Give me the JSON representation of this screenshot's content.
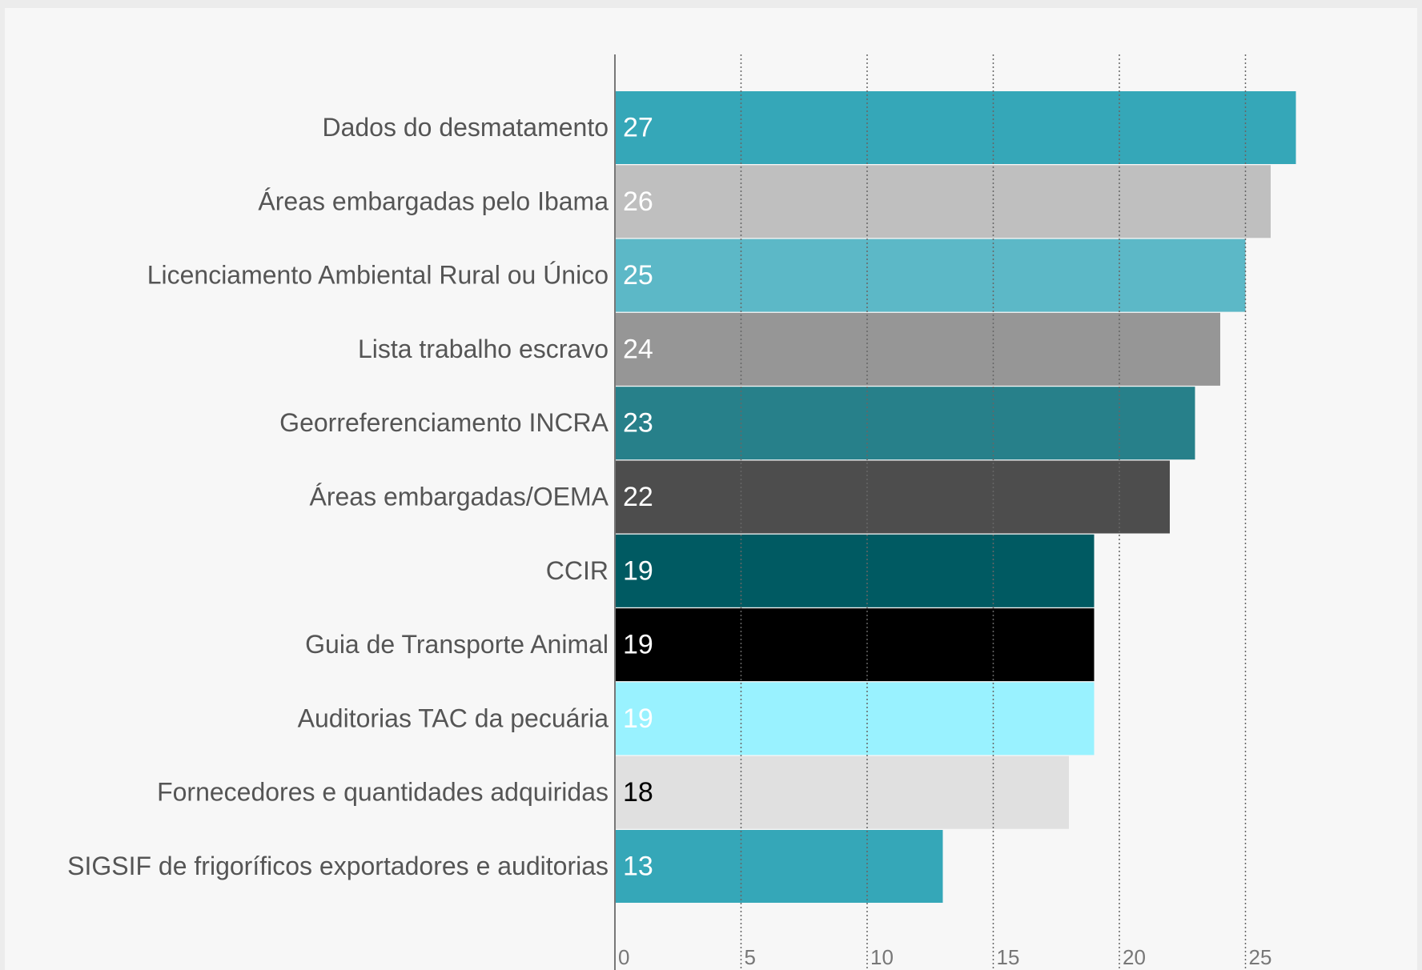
{
  "chart_data": {
    "type": "bar",
    "orientation": "horizontal",
    "categories": [
      "Dados do desmatamento",
      "Áreas embargadas pelo Ibama",
      "Licenciamento Ambiental Rural ou Único",
      "Lista trabalho escravo",
      "Georreferenciamento INCRA",
      "Áreas embargadas/OEMA",
      "CCIR",
      "Guia de Transporte Animal",
      "Auditorias TAC da pecuária",
      "Fornecedores e quantidades adquiridas",
      "SIGSIF de frigoríficos exportadores e auditorias"
    ],
    "values": [
      27,
      26,
      25,
      24,
      23,
      22,
      19,
      19,
      19,
      18,
      13
    ],
    "colors": [
      "#35a7b8",
      "#bfbfbf",
      "#5cb8c7",
      "#969696",
      "#27808a",
      "#4d4d4d",
      "#005a62",
      "#000000",
      "#99f2ff",
      "#e0e0e0",
      "#35a7b8"
    ],
    "label_colors": [
      "#ffffff",
      "#ffffff",
      "#ffffff",
      "#ffffff",
      "#ffffff",
      "#ffffff",
      "#ffffff",
      "#ffffff",
      "#ffffff",
      "#000000",
      "#ffffff"
    ],
    "xlim": [
      0,
      31
    ],
    "xticks": [
      0,
      5,
      10,
      15,
      20,
      25
    ],
    "grid": true
  }
}
